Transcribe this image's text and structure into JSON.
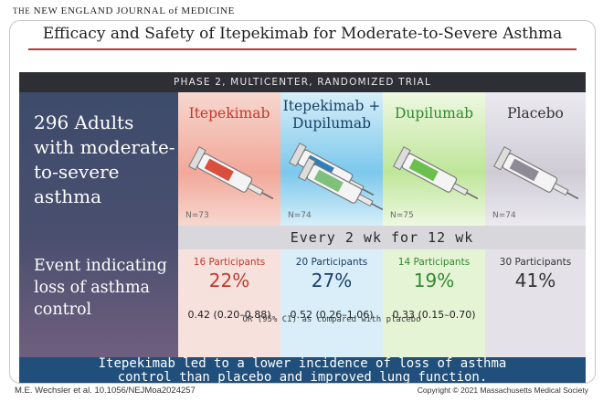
{
  "journal": {
    "prefix": "THE",
    "name": "NEW ENGLAND JOURNAL of MEDICINE"
  },
  "title": "Efficacy and Safety of Itepekimab for Moderate-to-Severe Asthma",
  "trial_bar": "PHASE 2, MULTICENTER, RANDOMIZED TRIAL",
  "population": [
    "296 Adults",
    "with moderate-",
    "to-severe",
    "asthma"
  ],
  "event_label": [
    "Event indicating",
    "loss of asthma",
    "control"
  ],
  "frequency": "Every 2 wk for 12 wk",
  "or_label": "OR (95% CI) as compared with placebo",
  "groups": [
    {
      "name_lines": [
        "Itepekimab"
      ],
      "n": "N=73",
      "participants": "16 Participants",
      "percent": "22%",
      "or": "0.42 (0.20–0.88)",
      "color": "#c0392b",
      "bg": "#f2b5a8"
    },
    {
      "name_lines": [
        "Itepekimab +",
        "Dupilumab"
      ],
      "n": "N=74",
      "participants": "20 Participants",
      "percent": "27%",
      "or": "0.52 (0.26–1.06)",
      "color": "#1a5f8a",
      "bg": "#8fd0ee"
    },
    {
      "name_lines": [
        "Dupilumab"
      ],
      "n": "N=75",
      "participants": "14 Participants",
      "percent": "19%",
      "or": "0.33 (0.15–0.70)",
      "color": "#2f8a2f",
      "bg": "#c9eaa4"
    },
    {
      "name_lines": [
        "Placebo"
      ],
      "n": "N=74",
      "participants": "30 Participants",
      "percent": "41%",
      "or": "",
      "color": "#333333",
      "bg": "#d6d4db"
    }
  ],
  "conclusion": [
    "Itepekimab led to a lower incidence of loss of asthma",
    "control than placebo and improved lung function."
  ],
  "footer_left": "M.E. Wechsler et al.   10.1056/NEJMoa2024257",
  "footer_right": "Copyright © 2021 Massachusetts Medical Society",
  "colors": {
    "title_rule": "#b23b3b",
    "bar": "#2e2e35",
    "conclusion": "#1f4f7a",
    "left_panel": "#3d4b6b"
  }
}
